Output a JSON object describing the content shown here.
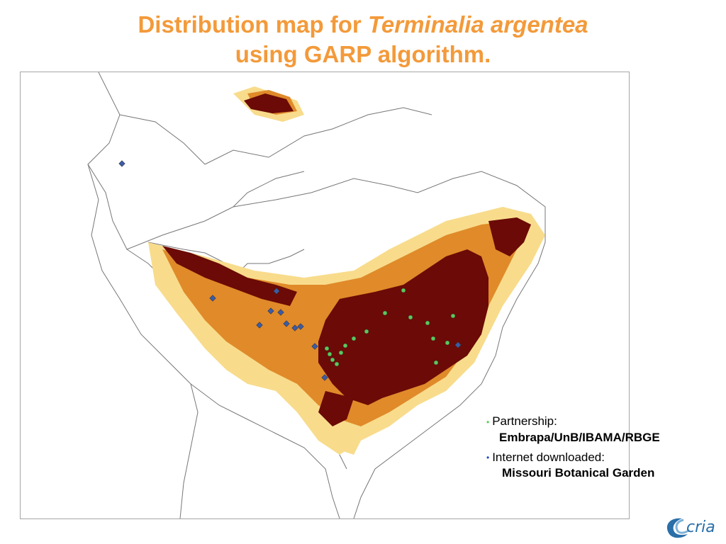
{
  "title": {
    "line1_prefix": "Distribution map for ",
    "line1_species": "Terminalia argentea",
    "line2": "using GARP algorithm."
  },
  "legend": {
    "partnership_label": "Partnership:",
    "partnership_value": "Embrapa/UnB/IBAMA/RBGE",
    "internet_label": "Internet downloaded:",
    "internet_value": "Missouri Botanical Garden",
    "bullet": "•"
  },
  "logo": {
    "text": "cria"
  },
  "colors": {
    "title": "#f39a3a",
    "high_probability": "#6b0a06",
    "medium_probability": "#e08a2a",
    "low_probability": "#f8dc8c",
    "partner_points": "#5cc85c",
    "internet_points": "#3a5ca8",
    "borders": "#777777"
  },
  "map": {
    "layers": [
      "country-borders",
      "prediction-areas",
      "occurrence-points"
    ]
  }
}
